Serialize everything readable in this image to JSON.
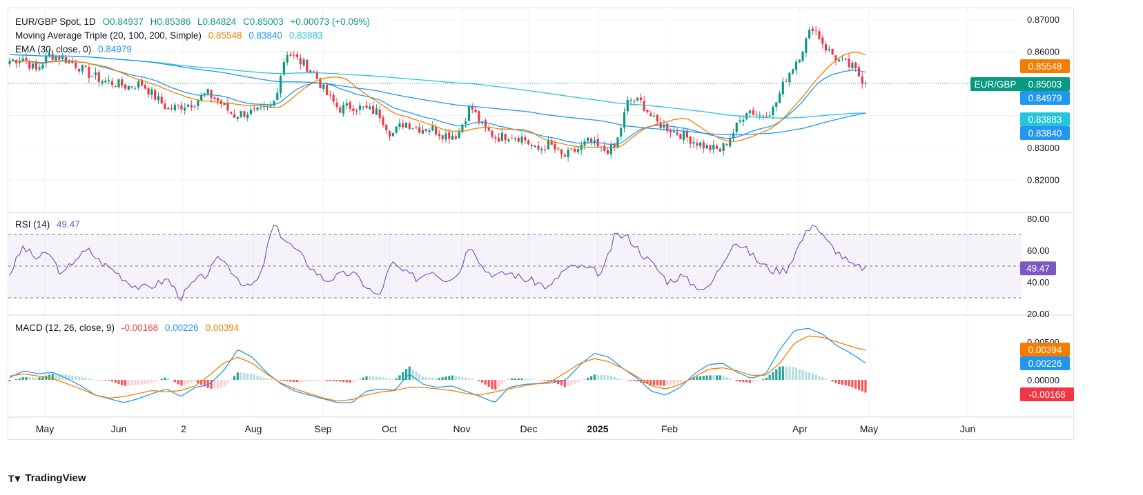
{
  "header": {
    "symbol": "EUR/GBP Spot, 1D",
    "ohlc": {
      "o": "O0.84937",
      "h": "H0.85386",
      "l": "L0.84824",
      "c": "C0.85003",
      "chg": "+0.00073 (+0.09%)"
    },
    "ma_label": "Moving Average Triple (20, 100, 200, Simple)",
    "ma_values": [
      "0.85548",
      "0.83840",
      "0.83883"
    ],
    "ema_label": "EMA (30, close, 0)",
    "ema_value": "0.84979",
    "rsi_label": "RSI (14)",
    "rsi_value": "49.47",
    "macd_label": "MACD (12, 26, close, 9)",
    "macd_values": [
      "-0.00168",
      "0.00226",
      "0.00394"
    ]
  },
  "colors": {
    "up": "#089981",
    "down": "#f23645",
    "ma20": "#f57c00",
    "ma100": "#2196f3",
    "ma200": "#26c6da",
    "ema": "#2196f3",
    "rsi": "#7e57c2",
    "macd": "#2196f3",
    "signal": "#f57c00"
  },
  "footer": {
    "brand": "TradingView"
  },
  "chart_data": [
    {
      "type": "candlestick",
      "title": "EUR/GBP Spot, 1D",
      "y_axis_ticks": [
        "0.87000",
        "0.86000",
        "0.84000",
        "0.83000",
        "0.82000"
      ],
      "ylim": [
        0.8155,
        0.8795
      ],
      "x_axis_ticks": [
        "May",
        "Jun",
        "2",
        "Aug",
        "Sep",
        "Oct",
        "Nov",
        "Dec",
        "2025",
        "Feb",
        "Apr",
        "May",
        "Jun"
      ],
      "price_labels": [
        {
          "text": "0.85548",
          "color": "#f57c00"
        },
        {
          "text": "EUR/GBP",
          "value": "0.85003",
          "color": "#089981"
        },
        {
          "text": "0.84979",
          "color": "#2196f3"
        },
        {
          "text": "0.83883",
          "color": "#26c6da"
        },
        {
          "text": "0.83840",
          "color": "#2196f3"
        }
      ],
      "last_close": 0.85003,
      "anchor_closes": [
        0.857,
        0.858,
        0.854,
        0.859,
        0.858,
        0.856,
        0.853,
        0.851,
        0.85,
        0.849,
        0.85,
        0.846,
        0.842,
        0.843,
        0.844,
        0.847,
        0.844,
        0.84,
        0.841,
        0.841,
        0.843,
        0.86,
        0.857,
        0.854,
        0.847,
        0.842,
        0.843,
        0.842,
        0.841,
        0.834,
        0.838,
        0.836,
        0.836,
        0.834,
        0.834,
        0.843,
        0.836,
        0.833,
        0.834,
        0.833,
        0.829,
        0.831,
        0.827,
        0.829,
        0.832,
        0.829,
        0.83,
        0.845,
        0.844,
        0.838,
        0.836,
        0.834,
        0.832,
        0.83,
        0.829,
        0.835,
        0.842,
        0.84,
        0.842,
        0.852,
        0.859,
        0.868,
        0.861,
        0.857,
        0.855,
        0.85
      ]
    },
    {
      "type": "line",
      "title": "RSI (14)",
      "y_axis_ticks": [
        "80.00",
        "60.00",
        "40.00",
        "20.00"
      ],
      "ylim": [
        16,
        84
      ],
      "bands": [
        70,
        50,
        30
      ],
      "value_label": "49.47",
      "values": [
        45,
        62,
        55,
        58,
        44,
        55,
        60,
        52,
        47,
        40,
        36,
        38,
        42,
        30,
        40,
        45,
        56,
        46,
        36,
        42,
        76,
        66,
        58,
        48,
        41,
        44,
        46,
        38,
        30,
        52,
        46,
        42,
        48,
        42,
        44,
        65,
        48,
        44,
        46,
        42,
        40,
        36,
        47,
        50,
        48,
        45,
        70,
        68,
        58,
        50,
        40,
        44,
        38,
        35,
        50,
        66,
        60,
        52,
        47,
        48,
        64,
        78,
        66,
        58,
        50,
        49
      ]
    },
    {
      "type": "bar",
      "title": "MACD (12, 26, close, 9)",
      "y_axis_ticks": [
        "0.00500",
        "0.00000"
      ],
      "ylim": [
        -0.0054,
        0.0079
      ],
      "value_labels": [
        {
          "text": "0.00394",
          "color": "#f57c00"
        },
        {
          "text": "0.00226",
          "color": "#2196f3"
        },
        {
          "text": "-0.00168",
          "color": "#f23645"
        }
      ],
      "macd": [
        0.0003,
        0.0012,
        0.0008,
        0.001,
        0.0002,
        -0.0008,
        -0.002,
        -0.0025,
        -0.003,
        -0.0025,
        -0.0018,
        -0.0012,
        -0.0022,
        -0.001,
        -0.0006,
        0.0012,
        0.004,
        0.003,
        0.001,
        -0.0005,
        -0.0015,
        -0.002,
        -0.0025,
        -0.003,
        -0.003,
        -0.0015,
        -0.0012,
        -0.0014,
        0.0008,
        -0.0006,
        -0.001,
        -0.0008,
        -0.0015,
        -0.0022,
        -0.003,
        -0.001,
        -0.0006,
        -0.0005,
        -0.0004,
        0.0,
        0.002,
        0.0035,
        0.003,
        0.0015,
        0.0002,
        -0.0015,
        -0.002,
        -0.001,
        0.0008,
        0.002,
        0.0022,
        0.001,
        0.0002,
        0.0008,
        0.004,
        0.0065,
        0.0068,
        0.006,
        0.0045,
        0.0035,
        0.0022
      ],
      "signal": [
        0.0005,
        0.0008,
        0.0005,
        0.0002,
        -0.0005,
        -0.0012,
        -0.002,
        -0.0024,
        -0.0022,
        -0.0018,
        -0.0014,
        -0.0016,
        -0.0014,
        -0.0008,
        0.0006,
        0.0022,
        0.003,
        0.0022,
        0.0008,
        -0.0004,
        -0.0012,
        -0.0018,
        -0.0024,
        -0.0028,
        -0.0026,
        -0.002,
        -0.0016,
        -0.0014,
        -0.001,
        -0.001,
        -0.0012,
        -0.0014,
        -0.0018,
        -0.002,
        -0.0016,
        -0.0012,
        -0.0008,
        -0.0005,
        -0.0002,
        0.001,
        0.0022,
        0.0028,
        0.0024,
        0.0015,
        0.0004,
        -0.0008,
        -0.0012,
        -0.0006,
        0.0004,
        0.0014,
        0.0016,
        0.0012,
        0.0006,
        0.0006,
        0.0022,
        0.0048,
        0.0058,
        0.0056,
        0.005,
        0.0044,
        0.0039
      ],
      "hist_last": -0.00168
    }
  ]
}
